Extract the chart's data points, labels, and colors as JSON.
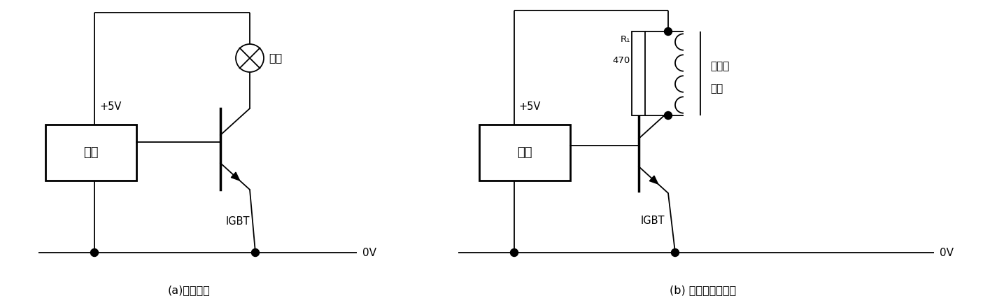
{
  "bg_color": "#ffffff",
  "line_color": "#000000",
  "fig_width": 14.05,
  "fig_height": 4.33,
  "label_a": "(a)驱动车灯",
  "label_b": "(b) 驱动继电器负载",
  "text_logic": "逻辑",
  "text_igbt": "IGBT",
  "text_5v": "+5V",
  "text_0v": "0V",
  "text_lamp": "车灯",
  "text_r1": "R₁",
  "text_470": "470",
  "text_relay1": "继电器",
  "text_relay2": "线圈"
}
